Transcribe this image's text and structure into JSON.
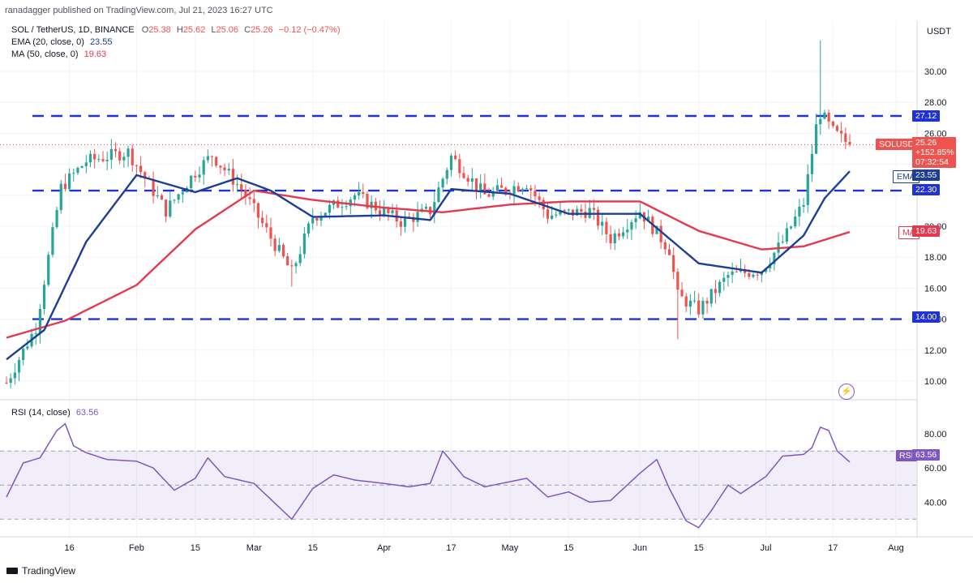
{
  "header": {
    "publisher": "ranadagger published on TradingView.com, Jul 21, 2023 16:27 UTC",
    "symbol_line": "SOL / TetherUS, 1D, BINANCE",
    "ohlc": {
      "o_label": "O",
      "o": "25.38",
      "h_label": "H",
      "h": "25.62",
      "l_label": "L",
      "l": "25.06",
      "c_label": "C",
      "c": "25.26",
      "change": "−0.12 (−0.47%)"
    },
    "ema_label": "EMA (20, close, 0)",
    "ema_value": "23.55",
    "ma_label": "MA (50, close, 0)",
    "ma_value": "19.63",
    "rsi_label": "RSI (14, close)",
    "rsi_value": "63.56",
    "currency": "USDT"
  },
  "badges": {
    "symbol": "SOLUSDT",
    "price": "25.26",
    "change_pct": "+152.85%",
    "countdown": "07:32:54",
    "ema_tag": "EMA",
    "ema": "23.55",
    "ma_tag": "MA",
    "ma": "19.63",
    "rsi_tag": "RSI",
    "rsi": "63.56",
    "level_27": "27.12",
    "level_22": "22.30",
    "level_14": "14.00"
  },
  "footer": {
    "logo": "TradingView"
  },
  "colors": {
    "up": "#26a69a",
    "down": "#ef5350",
    "ema": "#1c3f95",
    "ma": "#e53950",
    "rsi": "#7e57c2",
    "level": "#2032d6"
  },
  "chart_data": [
    {
      "type": "candlestick",
      "title": "SOL / TetherUS, 1D, BINANCE",
      "ylim": [
        8.4,
        33.0
      ],
      "y_ticks": [
        10,
        12,
        14,
        16,
        18,
        20,
        22,
        24,
        26,
        28,
        30
      ],
      "y_tick_labels": [
        "10.00",
        "12.00",
        "14.00",
        "16.00",
        "18.00",
        "20.00",
        "",
        "",
        "26.00",
        "28.00",
        "30.00"
      ],
      "x_ticks": [
        "16",
        "Feb",
        "15",
        "Mar",
        "15",
        "Apr",
        "17",
        "May",
        "15",
        "Jun",
        "15",
        "Jul",
        "17",
        "Aug"
      ],
      "horizontal_levels": [
        27.12,
        22.3,
        14.0
      ],
      "series": [
        {
          "name": "Price",
          "kind": "ohlc-keypoints",
          "points": [
            {
              "date": "Jan 1",
              "close": 9.9
            },
            {
              "date": "Jan 8",
              "close": 13.5
            },
            {
              "date": "Jan 14",
              "close": 22.5
            },
            {
              "date": "Jan 20",
              "close": 24.2
            },
            {
              "date": "Jan 30",
              "close": 24.8
            },
            {
              "date": "Feb 8",
              "close": 21.0
            },
            {
              "date": "Feb 15",
              "close": 23.5
            },
            {
              "date": "Feb 19",
              "close": 24.6
            },
            {
              "date": "Feb 26",
              "close": 22.4
            },
            {
              "date": "Mar 10",
              "close": 17.0
            },
            {
              "date": "Mar 15",
              "close": 20.6
            },
            {
              "date": "Mar 25",
              "close": 22.0
            },
            {
              "date": "Apr 5",
              "close": 20.3
            },
            {
              "date": "Apr 12",
              "close": 21.0
            },
            {
              "date": "Apr 17",
              "close": 24.5
            },
            {
              "date": "Apr 25",
              "close": 22.0
            },
            {
              "date": "May 5",
              "close": 22.8
            },
            {
              "date": "May 10",
              "close": 20.7
            },
            {
              "date": "May 20",
              "close": 21.0
            },
            {
              "date": "May 25",
              "close": 19.2
            },
            {
              "date": "Jun 1",
              "close": 21.0
            },
            {
              "date": "Jun 8",
              "close": 18.5
            },
            {
              "date": "Jun 10",
              "close": 15.5
            },
            {
              "date": "Jun 15",
              "close": 14.6
            },
            {
              "date": "Jun 22",
              "close": 16.8
            },
            {
              "date": "Jun 30",
              "close": 17.2
            },
            {
              "date": "Jul 5",
              "close": 19.0
            },
            {
              "date": "Jul 10",
              "close": 21.5
            },
            {
              "date": "Jul 13",
              "close": 26.4
            },
            {
              "date": "Jul 14",
              "close": 27.3
            },
            {
              "date": "Jul 17",
              "close": 26.1
            },
            {
              "date": "Jul 21",
              "close": 25.26
            }
          ]
        },
        {
          "name": "EMA (20, close, 0)",
          "values_at": [
            [
              "Jan 1",
              11.4
            ],
            [
              "Jan 10",
              13.3
            ],
            [
              "Jan 20",
              19.0
            ],
            [
              "Feb 1",
              23.3
            ],
            [
              "Feb 15",
              22.2
            ],
            [
              "Feb 25",
              23.1
            ],
            [
              "Mar 5",
              22.3
            ],
            [
              "Mar 15",
              20.6
            ],
            [
              "Apr 1",
              20.7
            ],
            [
              "Apr 12",
              20.4
            ],
            [
              "Apr 17",
              22.4
            ],
            [
              "May 1",
              22.1
            ],
            [
              "May 15",
              20.8
            ],
            [
              "Jun 1",
              20.8
            ],
            [
              "Jun 15",
              17.6
            ],
            [
              "Jun 30",
              17.0
            ],
            [
              "Jul 10",
              19.4
            ],
            [
              "Jul 15",
              21.8
            ],
            [
              "Jul 21",
              23.55
            ]
          ]
        },
        {
          "name": "MA (50, close, 0)",
          "values_at": [
            [
              "Jan 1",
              12.8
            ],
            [
              "Jan 15",
              13.9
            ],
            [
              "Feb 1",
              16.2
            ],
            [
              "Feb 15",
              19.8
            ],
            [
              "Mar 1",
              22.3
            ],
            [
              "Mar 15",
              21.7
            ],
            [
              "Apr 1",
              21.2
            ],
            [
              "Apr 15",
              20.9
            ],
            [
              "May 1",
              21.4
            ],
            [
              "May 15",
              21.6
            ],
            [
              "Jun 1",
              21.6
            ],
            [
              "Jun 15",
              19.7
            ],
            [
              "Jun 30",
              18.5
            ],
            [
              "Jul 10",
              18.7
            ],
            [
              "Jul 21",
              19.63
            ]
          ]
        }
      ]
    },
    {
      "type": "line",
      "title": "RSI (14, close)",
      "ylim": [
        23,
        92
      ],
      "y_ticks": [
        40,
        60,
        80
      ],
      "y_tick_labels": [
        "40.00",
        "60.00",
        "80.00"
      ],
      "band": [
        30,
        70
      ],
      "series": [
        {
          "name": "RSI (14, close)",
          "values_at": [
            [
              "Jan 1",
              43
            ],
            [
              "Jan 5",
              63
            ],
            [
              "Jan 9",
              66
            ],
            [
              "Jan 11",
              74
            ],
            [
              "Jan 13",
              82
            ],
            [
              "Jan 15",
              86
            ],
            [
              "Jan 17",
              73
            ],
            [
              "Jan 20",
              69
            ],
            [
              "Jan 25",
              65
            ],
            [
              "Feb 1",
              64
            ],
            [
              "Feb 5",
              60
            ],
            [
              "Feb 10",
              47
            ],
            [
              "Feb 15",
              54
            ],
            [
              "Feb 18",
              66
            ],
            [
              "Feb 22",
              55
            ],
            [
              "Mar 1",
              51
            ],
            [
              "Mar 10",
              30
            ],
            [
              "Mar 15",
              48
            ],
            [
              "Mar 20",
              56
            ],
            [
              "Mar 25",
              53
            ],
            [
              "Apr 1",
              51
            ],
            [
              "Apr 7",
              49
            ],
            [
              "Apr 12",
              51
            ],
            [
              "Apr 15",
              70
            ],
            [
              "Apr 20",
              55
            ],
            [
              "Apr 25",
              49
            ],
            [
              "May 1",
              52
            ],
            [
              "May 5",
              54
            ],
            [
              "May 10",
              43
            ],
            [
              "May 15",
              46
            ],
            [
              "May 20",
              40
            ],
            [
              "May 25",
              41
            ],
            [
              "Jun 1",
              57
            ],
            [
              "Jun 5",
              65
            ],
            [
              "Jun 8",
              48
            ],
            [
              "Jun 12",
              29
            ],
            [
              "Jun 15",
              25
            ],
            [
              "Jun 18",
              35
            ],
            [
              "Jun 22",
              50
            ],
            [
              "Jun 25",
              45
            ],
            [
              "Jun 28",
              50
            ],
            [
              "Jul 1",
              55
            ],
            [
              "Jul 5",
              67
            ],
            [
              "Jul 10",
              68
            ],
            [
              "Jul 12",
              72
            ],
            [
              "Jul 14",
              84
            ],
            [
              "Jul 16",
              82
            ],
            [
              "Jul 18",
              70
            ],
            [
              "Jul 21",
              63.56
            ]
          ]
        }
      ]
    }
  ]
}
